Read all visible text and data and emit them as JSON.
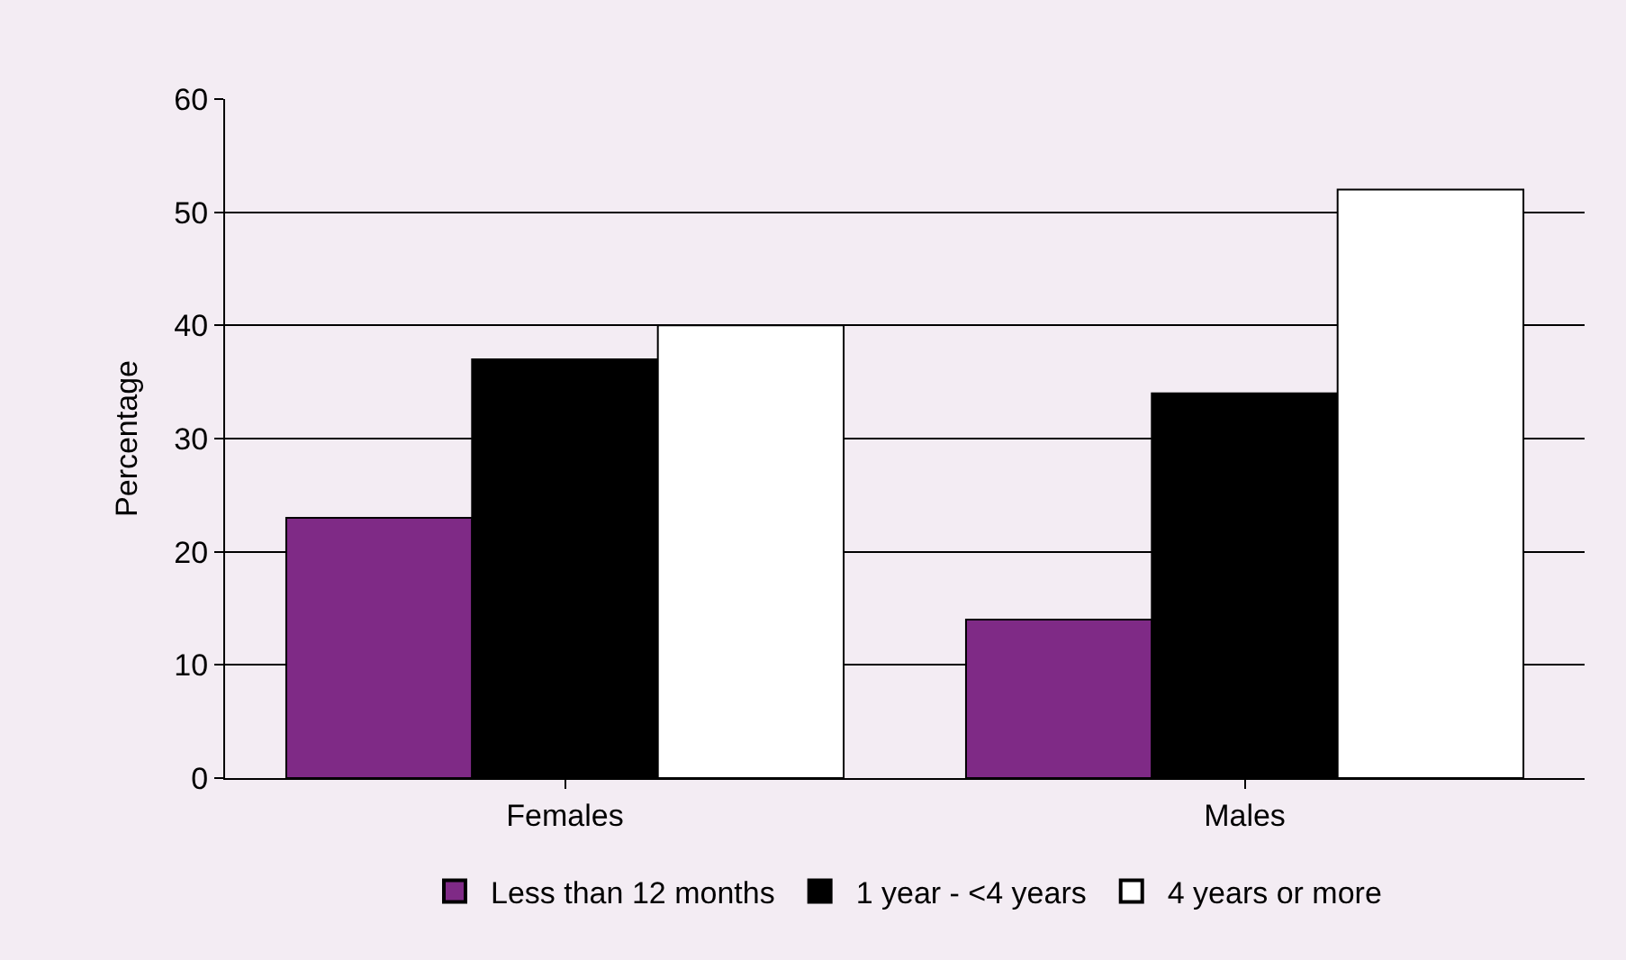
{
  "chart_data": {
    "type": "bar",
    "ylabel": "Percentage",
    "categories": [
      "Females",
      "Males"
    ],
    "series": [
      {
        "name": "Less than 12 months",
        "color": "#7f2a86",
        "values": [
          23,
          14
        ]
      },
      {
        "name": "1 year - <4 years",
        "color": "#000000",
        "values": [
          37,
          34
        ]
      },
      {
        "name": "4 years or more",
        "color": "#ffffff",
        "values": [
          40,
          52
        ]
      }
    ],
    "ylim": [
      0,
      60
    ],
    "yticks": [
      0,
      10,
      20,
      30,
      40,
      50,
      60
    ],
    "grid": "y",
    "legend": "bottom"
  }
}
